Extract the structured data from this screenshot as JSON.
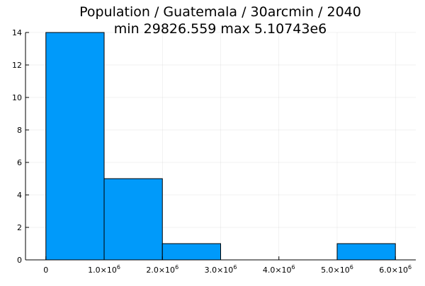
{
  "chart_data": {
    "type": "bar",
    "title": "Population / Guatemala / 30arcmin / 2040",
    "subtitle": "min 29826.559  max 5.10743e6",
    "xlabel": "",
    "ylabel": "",
    "bin_width": 1000000,
    "bins": [
      {
        "start": 0,
        "end": 1000000,
        "count": 14
      },
      {
        "start": 1000000,
        "end": 2000000,
        "count": 5
      },
      {
        "start": 2000000,
        "end": 3000000,
        "count": 1
      },
      {
        "start": 3000000,
        "end": 4000000,
        "count": 0
      },
      {
        "start": 4000000,
        "end": 5000000,
        "count": 0
      },
      {
        "start": 5000000,
        "end": 6000000,
        "count": 1
      }
    ],
    "xlim": [
      -350000,
      6350000
    ],
    "ylim": [
      0,
      14
    ],
    "x_ticks": [
      {
        "value": 0,
        "mantissa": "0",
        "exp": ""
      },
      {
        "value": 1000000,
        "mantissa": "1.0×10",
        "exp": "6"
      },
      {
        "value": 2000000,
        "mantissa": "2.0×10",
        "exp": "6"
      },
      {
        "value": 3000000,
        "mantissa": "3.0×10",
        "exp": "6"
      },
      {
        "value": 4000000,
        "mantissa": "4.0×10",
        "exp": "6"
      },
      {
        "value": 5000000,
        "mantissa": "5.0×10",
        "exp": "6"
      },
      {
        "value": 6000000,
        "mantissa": "6.0×10",
        "exp": "6"
      }
    ],
    "y_ticks": [
      0,
      2,
      4,
      6,
      8,
      10,
      12,
      14
    ],
    "grid": true,
    "legend": "none",
    "bar_color": "#009AFA",
    "edge_color": "#000000"
  }
}
